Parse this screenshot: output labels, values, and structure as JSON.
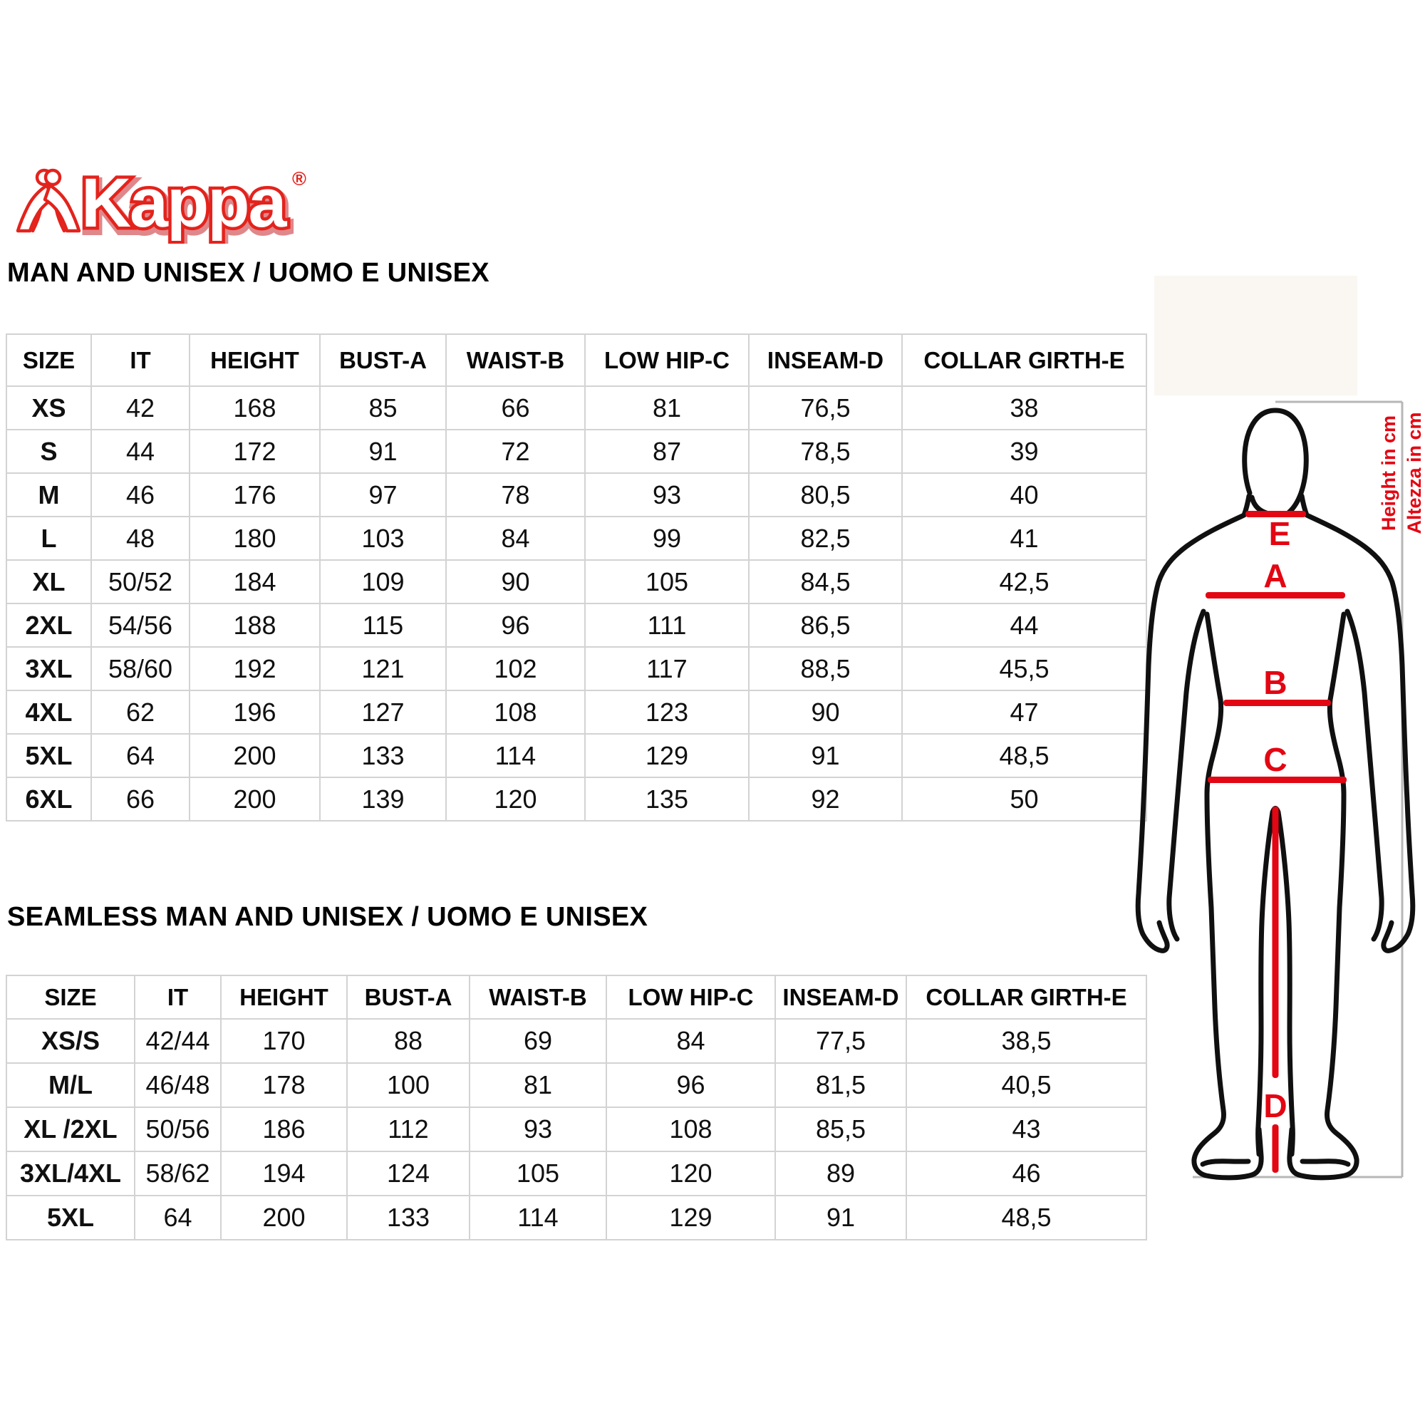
{
  "brand": {
    "name": "Kappa",
    "registered": "®"
  },
  "sections": [
    {
      "title": "MAN AND UNISEX / UOMO E UNISEX",
      "table": {
        "headers": [
          "SIZE",
          "IT",
          "HEIGHT",
          "BUST-A",
          "WAIST-B",
          "LOW HIP-C",
          "INSEAM-D",
          "COLLAR GIRTH-E"
        ],
        "rows": [
          [
            "XS",
            "42",
            "168",
            "85",
            "66",
            "81",
            "76,5",
            "38"
          ],
          [
            "S",
            "44",
            "172",
            "91",
            "72",
            "87",
            "78,5",
            "39"
          ],
          [
            "M",
            "46",
            "176",
            "97",
            "78",
            "93",
            "80,5",
            "40"
          ],
          [
            "L",
            "48",
            "180",
            "103",
            "84",
            "99",
            "82,5",
            "41"
          ],
          [
            "XL",
            "50/52",
            "184",
            "109",
            "90",
            "105",
            "84,5",
            "42,5"
          ],
          [
            "2XL",
            "54/56",
            "188",
            "115",
            "96",
            "111",
            "86,5",
            "44"
          ],
          [
            "3XL",
            "58/60",
            "192",
            "121",
            "102",
            "117",
            "88,5",
            "45,5"
          ],
          [
            "4XL",
            "62",
            "196",
            "127",
            "108",
            "123",
            "90",
            "47"
          ],
          [
            "5XL",
            "64",
            "200",
            "133",
            "114",
            "129",
            "91",
            "48,5"
          ],
          [
            "6XL",
            "66",
            "200",
            "139",
            "120",
            "135",
            "92",
            "50"
          ]
        ]
      }
    },
    {
      "title": "SEAMLESS MAN AND UNISEX / UOMO E UNISEX",
      "table": {
        "headers": [
          "SIZE",
          "IT",
          "HEIGHT",
          "BUST-A",
          "WAIST-B",
          "LOW HIP-C",
          "INSEAM-D",
          "COLLAR GIRTH-E"
        ],
        "rows": [
          [
            "XS/S",
            "42/44",
            "170",
            "88",
            "69",
            "84",
            "77,5",
            "38,5"
          ],
          [
            "M/L",
            "46/48",
            "178",
            "100",
            "81",
            "96",
            "81,5",
            "40,5"
          ],
          [
            "XL /2XL",
            "50/56",
            "186",
            "112",
            "93",
            "108",
            "85,5",
            "43"
          ],
          [
            "3XL/4XL",
            "58/62",
            "194",
            "124",
            "105",
            "120",
            "89",
            "46"
          ],
          [
            "5XL",
            "64",
            "200",
            "133",
            "114",
            "129",
            "91",
            "48,5"
          ]
        ]
      }
    }
  ],
  "diagram": {
    "measure_labels": {
      "collar": "E",
      "bust": "A",
      "waist": "B",
      "low_hip": "C",
      "inseam": "D"
    },
    "side_text_en": "Height in cm",
    "side_text_it": "Altezza in cm",
    "colors": {
      "accent_red": "#e30613",
      "body_outline": "#101010",
      "frame_border": "#b7b7b7"
    }
  }
}
